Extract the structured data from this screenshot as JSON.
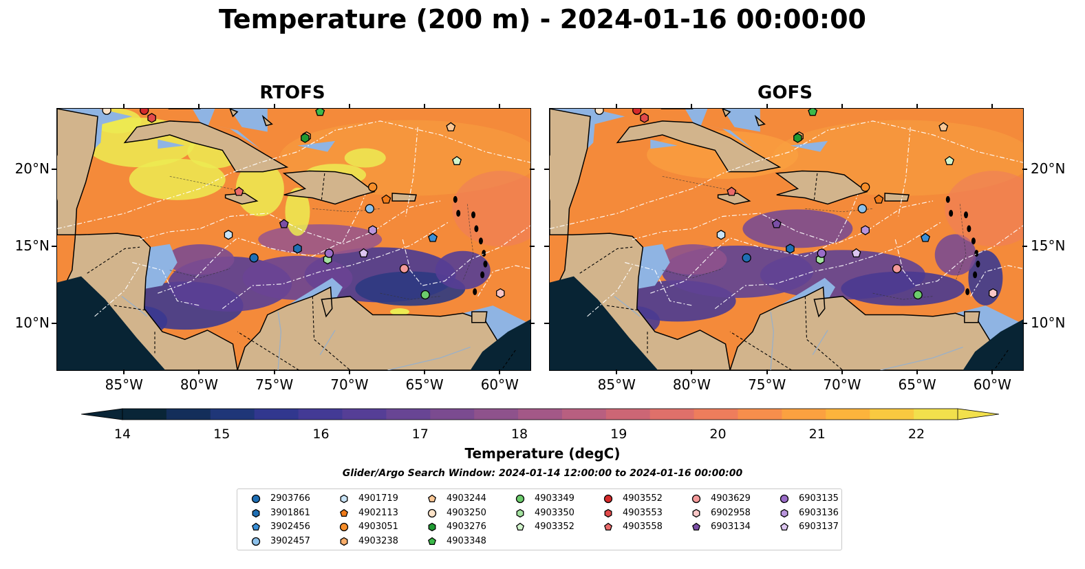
{
  "title": "Temperature (200 m) - 2024-01-16 00:00:00",
  "panels": [
    {
      "title": "RTOFS"
    },
    {
      "title": "GOFS"
    }
  ],
  "map": {
    "lon_range": [
      -89.5,
      -58.0
    ],
    "lat_range": [
      7.0,
      24.0
    ],
    "lon_ticks": [
      "85°W",
      "80°W",
      "75°W",
      "70°W",
      "65°W",
      "60°W"
    ],
    "lat_ticks": [
      "20°N",
      "15°N",
      "10°N"
    ],
    "land_color": "#d2b48c",
    "shallow_color": "#8fb4e3",
    "deep_water_color": "#082434"
  },
  "colorbar": {
    "title": "Temperature (degC)",
    "min": 14,
    "max": 22,
    "tick_labels": [
      "14",
      "15",
      "16",
      "17",
      "18",
      "19",
      "20",
      "21",
      "22"
    ],
    "colors": [
      "#092537",
      "#132e5a",
      "#1f3678",
      "#31378e",
      "#433a95",
      "#553e96",
      "#684594",
      "#7b4b90",
      "#8e528c",
      "#a35887",
      "#b85f80",
      "#cc6675",
      "#df706a",
      "#ee7d5c",
      "#f78e4c",
      "#fba140",
      "#fcb43c",
      "#f9c940",
      "#f2e04c"
    ],
    "extend": "both"
  },
  "search_window": "Glider/Argo Search Window: 2024-01-14 12:00:00 to 2024-01-16 00:00:00",
  "legend": {
    "columns": [
      [
        {
          "id": "2903766",
          "marker": "circle",
          "color": "#1f6fb4"
        },
        {
          "id": "3901861",
          "marker": "hexagon",
          "color": "#1f6fb4"
        },
        {
          "id": "3902456",
          "marker": "pentagon",
          "color": "#3a8fd6"
        },
        {
          "id": "3902457",
          "marker": "circle",
          "color": "#8cc0ea"
        }
      ],
      [
        {
          "id": "4901719",
          "marker": "hexagon",
          "color": "#c9e4f7"
        },
        {
          "id": "4902113",
          "marker": "pentagon",
          "color": "#f07b1a"
        },
        {
          "id": "4903051",
          "marker": "circle",
          "color": "#f78e2a"
        },
        {
          "id": "4903238",
          "marker": "hexagon",
          "color": "#f9ad6a"
        }
      ],
      [
        {
          "id": "4903244",
          "marker": "pentagon",
          "color": "#fbc896"
        },
        {
          "id": "4903250",
          "marker": "circle",
          "color": "#fde3c8"
        },
        {
          "id": "4903276",
          "marker": "hexagon",
          "color": "#1f9a32"
        },
        {
          "id": "4903348",
          "marker": "pentagon",
          "color": "#3cba4a"
        }
      ],
      [
        {
          "id": "4903349",
          "marker": "circle",
          "color": "#6ccc6c"
        },
        {
          "id": "4903350",
          "marker": "hexagon",
          "color": "#a4e2a0"
        },
        {
          "id": "4903352",
          "marker": "pentagon",
          "color": "#d2f5cc"
        }
      ],
      [
        {
          "id": "4903552",
          "marker": "circle",
          "color": "#d52a2a"
        },
        {
          "id": "4903553",
          "marker": "hexagon",
          "color": "#e14a4a"
        },
        {
          "id": "4903558",
          "marker": "pentagon",
          "color": "#ea6a6a"
        }
      ],
      [
        {
          "id": "4903629",
          "marker": "circle",
          "color": "#f49a9a"
        },
        {
          "id": "6902958",
          "marker": "hexagon",
          "color": "#f9c6c6"
        },
        {
          "id": "6903134",
          "marker": "pentagon",
          "color": "#7b4fa6"
        }
      ],
      [
        {
          "id": "6903135",
          "marker": "circle",
          "color": "#9a6cc8"
        },
        {
          "id": "6903136",
          "marker": "hexagon",
          "color": "#b995dc"
        },
        {
          "id": "6903137",
          "marker": "pentagon",
          "color": "#dcc6f0"
        }
      ]
    ]
  },
  "platforms": [
    {
      "id": "2903766",
      "lon": -76.4,
      "lat": 14.3
    },
    {
      "id": "3901861",
      "lon": -73.5,
      "lat": 14.9
    },
    {
      "id": "3902456",
      "lon": -64.5,
      "lat": 15.6
    },
    {
      "id": "3902457",
      "lon": -68.7,
      "lat": 17.5
    },
    {
      "id": "4901719",
      "lon": -78.1,
      "lat": 15.8
    },
    {
      "id": "4902113",
      "lon": -67.6,
      "lat": 18.1
    },
    {
      "id": "4903051",
      "lon": -68.5,
      "lat": 18.9
    },
    {
      "id": "4903238",
      "lon": -72.9,
      "lat": 22.2
    },
    {
      "id": "4903244",
      "lon": -63.3,
      "lat": 22.8
    },
    {
      "id": "4903250",
      "lon": -86.2,
      "lat": 23.9
    },
    {
      "id": "4903276",
      "lon": -73.0,
      "lat": 22.1
    },
    {
      "id": "4903348",
      "lon": -72.0,
      "lat": 23.8
    },
    {
      "id": "4903349",
      "lon": -65.0,
      "lat": 11.9
    },
    {
      "id": "4903350",
      "lon": -71.5,
      "lat": 14.2
    },
    {
      "id": "4903352",
      "lon": -62.9,
      "lat": 20.6
    },
    {
      "id": "4903552",
      "lon": -83.7,
      "lat": 23.9
    },
    {
      "id": "4903553",
      "lon": -83.2,
      "lat": 23.4
    },
    {
      "id": "4903558",
      "lon": -77.4,
      "lat": 18.6
    },
    {
      "id": "4903629",
      "lon": -66.4,
      "lat": 13.6
    },
    {
      "id": "6902958",
      "lon": -60.0,
      "lat": 12.0
    },
    {
      "id": "6903134",
      "lon": -74.4,
      "lat": 16.5
    },
    {
      "id": "6903135",
      "lon": -71.4,
      "lat": 14.6
    },
    {
      "id": "6903136",
      "lon": -68.5,
      "lat": 16.1
    },
    {
      "id": "6903137",
      "lon": -69.1,
      "lat": 14.6
    }
  ]
}
